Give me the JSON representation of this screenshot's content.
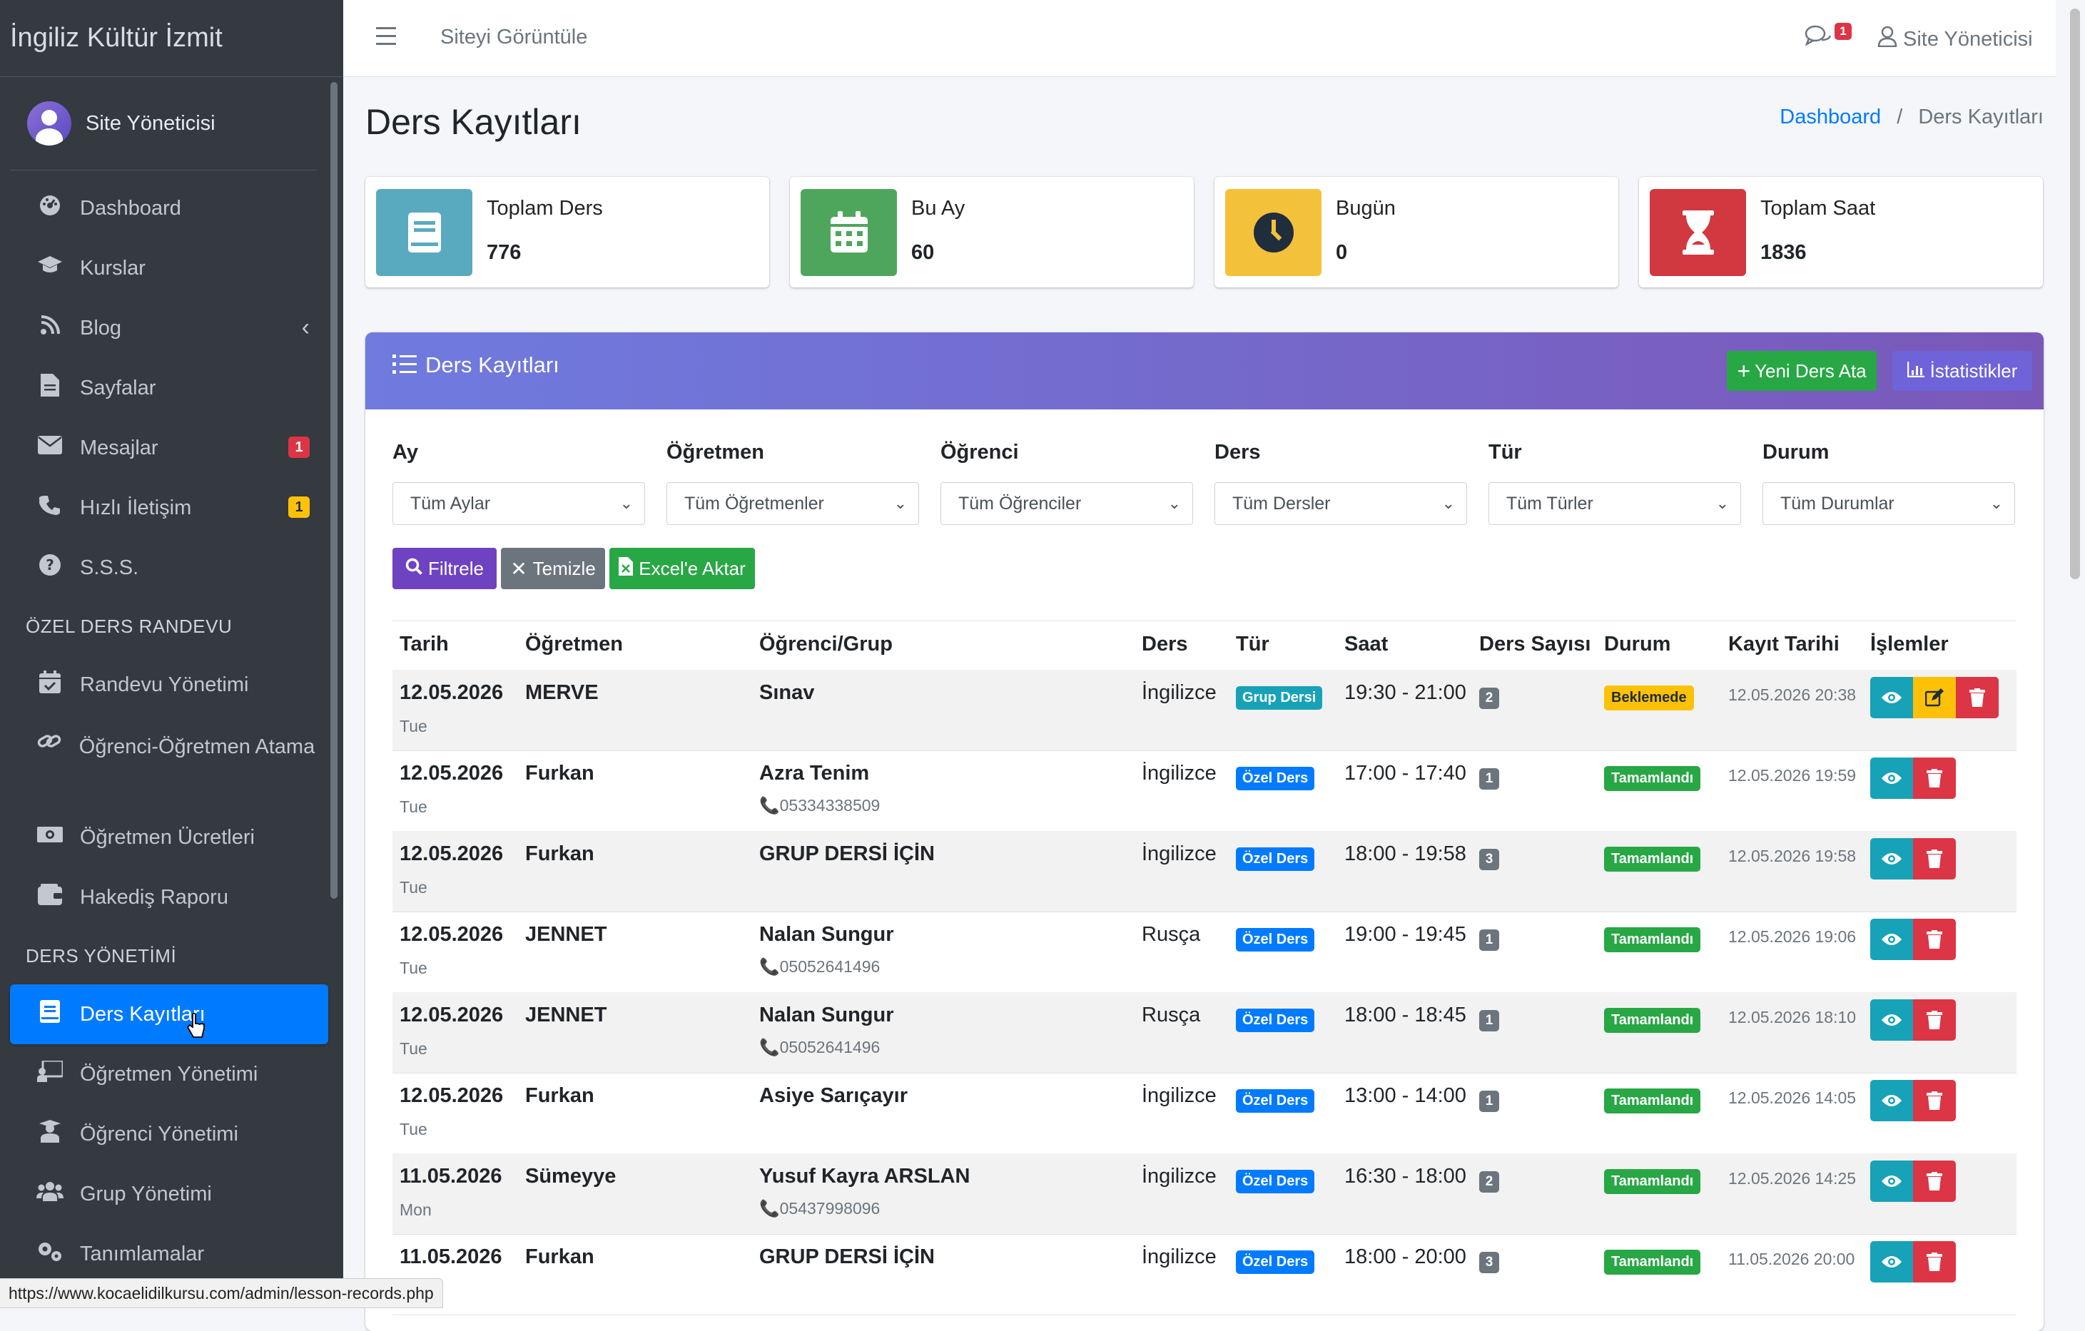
{
  "brand": "İngiliz Kültür İzmit",
  "user": {
    "name": "Site Yöneticisi"
  },
  "sidebar": {
    "items": [
      {
        "label": "Dashboard",
        "icon": "dashboard-icon"
      },
      {
        "label": "Kurslar",
        "icon": "graduation-cap-icon"
      },
      {
        "label": "Blog",
        "icon": "blog-icon"
      },
      {
        "label": "Sayfalar",
        "icon": "file-icon"
      },
      {
        "label": "Mesajlar",
        "icon": "envelope-icon",
        "badge": "1"
      },
      {
        "label": "Hızlı İletişim",
        "icon": "phone-icon",
        "badge": "1"
      },
      {
        "label": "S.S.S.",
        "icon": "question-icon"
      }
    ],
    "header1": "ÖZEL DERS RANDEVU",
    "items2": [
      {
        "label": "Randevu Yönetimi"
      },
      {
        "label": "Öğrenci-Öğretmen Atama"
      },
      {
        "label": "Öğretmen Ücretleri"
      },
      {
        "label": "Hakediş Raporu"
      }
    ],
    "header2": "DERS YÖNETİMİ",
    "items3": [
      {
        "label": "Ders Kayıtları"
      },
      {
        "label": "Öğretmen Yönetimi"
      },
      {
        "label": "Öğrenci Yönetimi"
      },
      {
        "label": "Grup Yönetimi"
      },
      {
        "label": "Tanımlamalar"
      }
    ]
  },
  "topbar": {
    "site_link": "Siteyi Görüntüle",
    "msg_badge": "1",
    "user": "Site Yöneticisi"
  },
  "page": {
    "title": "Ders Kayıtları",
    "breadcrumb_home": "Dashboard",
    "breadcrumb_sep": "/",
    "breadcrumb_current": "Ders Kayıtları"
  },
  "stats": [
    {
      "label": "Toplam Ders",
      "value": "776",
      "color": "#5aaabf"
    },
    {
      "label": "Bu Ay",
      "value": "60",
      "color": "#4ea65c"
    },
    {
      "label": "Bugün",
      "value": "0",
      "color": "#f4c13a"
    },
    {
      "label": "Toplam Saat",
      "value": "1836",
      "color": "#d1383f"
    }
  ],
  "card": {
    "title": "Ders Kayıtları",
    "new_button": "Yeni Ders Ata",
    "stats_button": "İstatistikler"
  },
  "filters": {
    "ay": {
      "label": "Ay",
      "value": "Tüm Aylar"
    },
    "ogretmen": {
      "label": "Öğretmen",
      "value": "Tüm Öğretmenler"
    },
    "ogrenci": {
      "label": "Öğrenci",
      "value": "Tüm Öğrenciler"
    },
    "ders": {
      "label": "Ders",
      "value": "Tüm Dersler"
    },
    "tur": {
      "label": "Tür",
      "value": "Tüm Türler"
    },
    "durum": {
      "label": "Durum",
      "value": "Tüm Durumlar"
    },
    "filter_button": "Filtrele",
    "clear_button": "Temizle",
    "excel_button": "Excel'e Aktar"
  },
  "table": {
    "headers": [
      "Tarih",
      "Öğretmen",
      "Öğrenci/Grup",
      "Ders",
      "Tür",
      "Saat",
      "Ders Sayısı",
      "Durum",
      "Kayıt Tarihi",
      "İşlemler"
    ],
    "rows": [
      {
        "date": "12.05.2026",
        "day": "Tue",
        "teacher": "MERVE",
        "student": "Sınav",
        "phone": "",
        "lesson": "İngilizce",
        "type": "Grup Dersi",
        "time": "19:30 - 21:00",
        "count": "2",
        "status": "Beklemede",
        "created": "12.05.2026 20:38"
      },
      {
        "date": "12.05.2026",
        "day": "Tue",
        "teacher": "Furkan",
        "student": "Azra Tenim",
        "phone": "05334338509",
        "lesson": "İngilizce",
        "type": "Özel Ders",
        "time": "17:00 - 17:40",
        "count": "1",
        "status": "Tamamlandı",
        "created": "12.05.2026 19:59"
      },
      {
        "date": "12.05.2026",
        "day": "Tue",
        "teacher": "Furkan",
        "student": "GRUP DERSİ İÇİN",
        "phone": "",
        "lesson": "İngilizce",
        "type": "Özel Ders",
        "time": "18:00 - 19:58",
        "count": "3",
        "status": "Tamamlandı",
        "created": "12.05.2026 19:58"
      },
      {
        "date": "12.05.2026",
        "day": "Tue",
        "teacher": "JENNET",
        "student": "Nalan Sungur",
        "phone": "05052641496",
        "lesson": "Rusça",
        "type": "Özel Ders",
        "time": "19:00 - 19:45",
        "count": "1",
        "status": "Tamamlandı",
        "created": "12.05.2026 19:06"
      },
      {
        "date": "12.05.2026",
        "day": "Tue",
        "teacher": "JENNET",
        "student": "Nalan Sungur",
        "phone": "05052641496",
        "lesson": "Rusça",
        "type": "Özel Ders",
        "time": "18:00 - 18:45",
        "count": "1",
        "status": "Tamamlandı",
        "created": "12.05.2026 18:10"
      },
      {
        "date": "12.05.2026",
        "day": "Tue",
        "teacher": "Furkan",
        "student": "Asiye Sarıçayır",
        "phone": "",
        "lesson": "İngilizce",
        "type": "Özel Ders",
        "time": "13:00 - 14:00",
        "count": "1",
        "status": "Tamamlandı",
        "created": "12.05.2026 14:05"
      },
      {
        "date": "11.05.2026",
        "day": "Mon",
        "teacher": "Sümeyye",
        "student": "Yusuf Kayra ARSLAN",
        "phone": "05437998096",
        "lesson": "İngilizce",
        "type": "Özel Ders",
        "time": "16:30 - 18:00",
        "count": "2",
        "status": "Tamamlandı",
        "created": "12.05.2026 14:25"
      },
      {
        "date": "11.05.2026",
        "day": "",
        "teacher": "Furkan",
        "student": "GRUP DERSİ İÇİN",
        "phone": "",
        "lesson": "İngilizce",
        "type": "Özel Ders",
        "time": "18:00 - 20:00",
        "count": "3",
        "status": "Tamamlandı",
        "created": "11.05.2026 20:00"
      }
    ]
  },
  "statusbar_url": "https://www.kocaelidilkursu.com/admin/lesson-records.php"
}
